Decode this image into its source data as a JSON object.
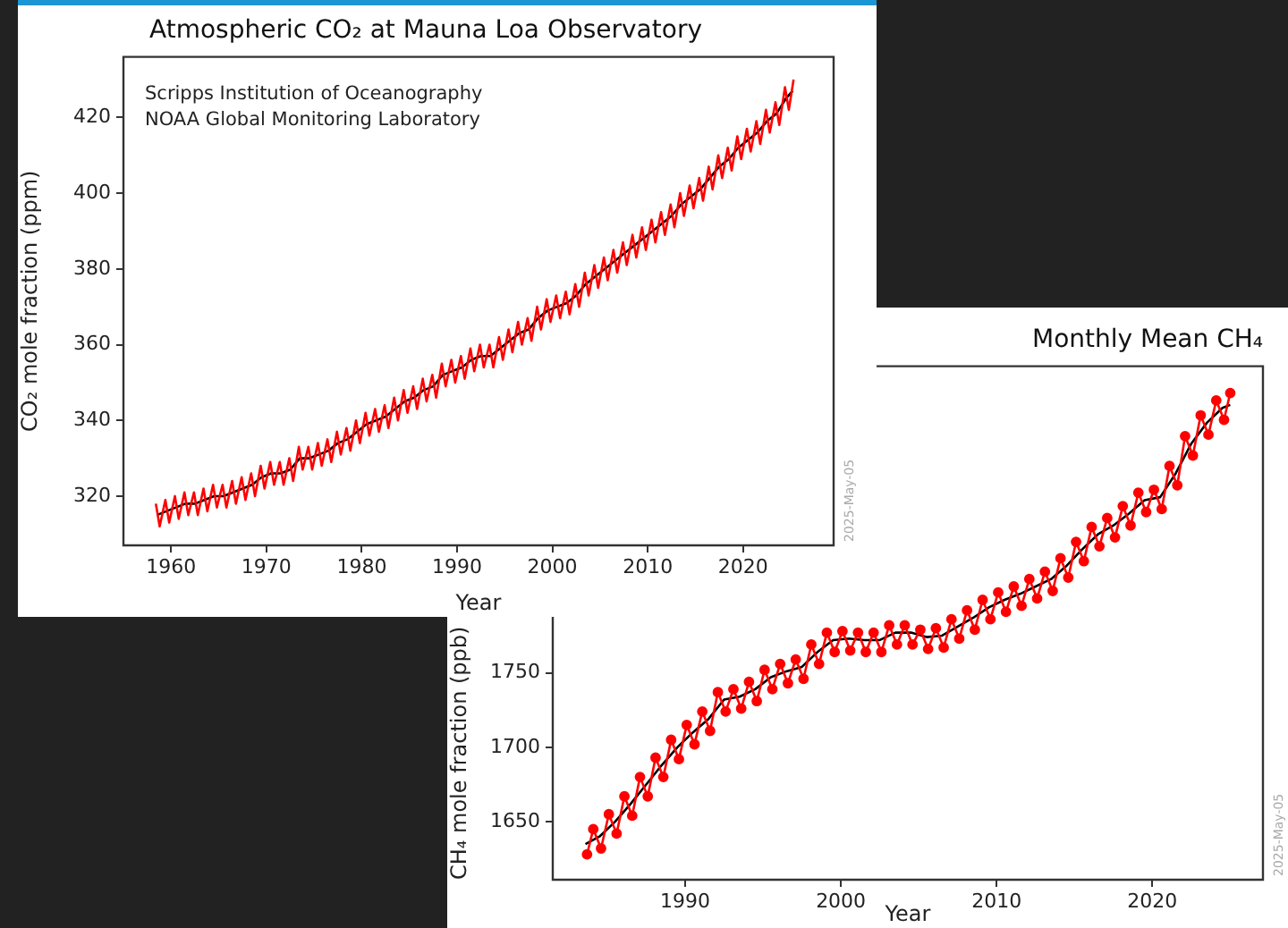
{
  "chart_data": [
    {
      "type": "line",
      "title": "Atmospheric CO₂ at Mauna Loa Observatory",
      "xlabel": "Year",
      "ylabel": "CO₂ mole fraction (ppm)",
      "annotations": [
        "Scripps Institution of Oceanography",
        "NOAA Global Monitoring Laboratory",
        "2025-May-05"
      ],
      "xlim": [
        1955,
        2029.5
      ],
      "xticks": [
        1960,
        1970,
        1980,
        1990,
        2000,
        2010,
        2020
      ],
      "ylim": [
        307,
        436
      ],
      "yticks": [
        320,
        340,
        360,
        380,
        400,
        420
      ],
      "grid": false,
      "legend": false,
      "marker": "none",
      "line_style": "solid",
      "series": [
        {
          "color": "#ff0000",
          "x": [
            1958.4,
            1958.8,
            1959.4,
            1959.8,
            1960.4,
            1960.8,
            1961.4,
            1961.8,
            1962.4,
            1962.8,
            1963.4,
            1963.8,
            1964.4,
            1964.8,
            1965.4,
            1965.8,
            1966.4,
            1966.8,
            1967.4,
            1967.8,
            1968.4,
            1968.8,
            1969.4,
            1969.8,
            1970.4,
            1970.8,
            1971.4,
            1971.8,
            1972.4,
            1972.8,
            1973.4,
            1973.8,
            1974.4,
            1974.8,
            1975.4,
            1975.8,
            1976.4,
            1976.8,
            1977.4,
            1977.8,
            1978.4,
            1978.8,
            1979.4,
            1979.8,
            1980.4,
            1980.8,
            1981.4,
            1981.8,
            1982.4,
            1982.8,
            1983.4,
            1983.8,
            1984.4,
            1984.8,
            1985.4,
            1985.8,
            1986.4,
            1986.8,
            1987.4,
            1987.8,
            1988.4,
            1988.8,
            1989.4,
            1989.8,
            1990.4,
            1990.8,
            1991.4,
            1991.8,
            1992.4,
            1992.8,
            1993.4,
            1993.8,
            1994.4,
            1994.8,
            1995.4,
            1995.8,
            1996.4,
            1996.8,
            1997.4,
            1997.8,
            1998.4,
            1998.8,
            1999.4,
            1999.8,
            2000.4,
            2000.8,
            2001.4,
            2001.8,
            2002.4,
            2002.8,
            2003.4,
            2003.8,
            2004.4,
            2004.8,
            2005.4,
            2005.8,
            2006.4,
            2006.8,
            2007.4,
            2007.8,
            2008.4,
            2008.8,
            2009.4,
            2009.8,
            2010.4,
            2010.8,
            2011.4,
            2011.8,
            2012.4,
            2012.8,
            2013.4,
            2013.8,
            2014.4,
            2014.8,
            2015.4,
            2015.8,
            2016.4,
            2016.8,
            2017.4,
            2017.8,
            2018.4,
            2018.8,
            2019.4,
            2019.8,
            2020.4,
            2020.8,
            2021.4,
            2021.8,
            2022.4,
            2022.8,
            2023.4,
            2023.8,
            2024.4,
            2024.8,
            2025.3
          ],
          "values": [
            318,
            312,
            319,
            313,
            320,
            314,
            321,
            315,
            321,
            315,
            322,
            316,
            323,
            317,
            323,
            317,
            324,
            318,
            325,
            319,
            326,
            320,
            328,
            322,
            329,
            323,
            329,
            323,
            330,
            324,
            333,
            327,
            333,
            327,
            334,
            328,
            335,
            329,
            337,
            331,
            338,
            332,
            340,
            334,
            342,
            336,
            343,
            337,
            344,
            338,
            346,
            340,
            348,
            342,
            349,
            343,
            351,
            345,
            352,
            346,
            355,
            349,
            356,
            350,
            357,
            351,
            359,
            353,
            360,
            354,
            360,
            354,
            362,
            356,
            364,
            358,
            366,
            360,
            367,
            361,
            370,
            364,
            372,
            366,
            373,
            367,
            374,
            368,
            376,
            370,
            379,
            373,
            381,
            375,
            383,
            377,
            385,
            379,
            387,
            381,
            389,
            383,
            391,
            385,
            393,
            387,
            395,
            389,
            397,
            391,
            400,
            394,
            402,
            396,
            404,
            398,
            407,
            401,
            410,
            404,
            412,
            406,
            415,
            409,
            417,
            411,
            419,
            413,
            422,
            416,
            424,
            418,
            428,
            422,
            430
          ]
        },
        {
          "color": "#000000",
          "x": [
            1958.5,
            1959.5,
            1960.5,
            1961.5,
            1962.5,
            1963.5,
            1964.5,
            1965.5,
            1966.5,
            1967.5,
            1968.5,
            1969.5,
            1970.5,
            1971.5,
            1972.5,
            1973.5,
            1974.5,
            1975.5,
            1976.5,
            1977.5,
            1978.5,
            1979.5,
            1980.5,
            1981.5,
            1982.5,
            1983.5,
            1984.5,
            1985.5,
            1986.5,
            1987.5,
            1988.5,
            1989.5,
            1990.5,
            1991.5,
            1992.5,
            1993.5,
            1994.5,
            1995.5,
            1996.5,
            1997.5,
            1998.5,
            1999.5,
            2000.5,
            2001.5,
            2002.5,
            2003.5,
            2004.5,
            2005.5,
            2006.5,
            2007.5,
            2008.5,
            2009.5,
            2010.5,
            2011.5,
            2012.5,
            2013.5,
            2014.5,
            2015.5,
            2016.5,
            2017.5,
            2018.5,
            2019.5,
            2020.5,
            2021.5,
            2022.5,
            2023.5,
            2024.5,
            2025.2
          ],
          "values": [
            315,
            316,
            317,
            318,
            318,
            319,
            320,
            320,
            321,
            322,
            323,
            325,
            326,
            326,
            327,
            330,
            330,
            331,
            332,
            334,
            335,
            337,
            339,
            340,
            341,
            343,
            345,
            346,
            348,
            349,
            352,
            353,
            354,
            356,
            357,
            357,
            359,
            361,
            363,
            364,
            367,
            369,
            370,
            371,
            373,
            376,
            378,
            380,
            382,
            384,
            386,
            388,
            390,
            392,
            394,
            397,
            399,
            401,
            404,
            407,
            409,
            412,
            414,
            416,
            419,
            421,
            425,
            427
          ]
        }
      ]
    },
    {
      "type": "line",
      "title": "Monthly Mean CH₄",
      "xlabel": "Year",
      "ylabel": "CH₄ mole fraction (ppb)",
      "annotations": [
        "2025-May-05"
      ],
      "xlim": [
        1981.5,
        2027.1
      ],
      "xticks": [
        1990,
        2000,
        2010,
        2020
      ],
      "ylim": [
        1611,
        1956
      ],
      "yticks": [
        1650,
        1700,
        1750
      ],
      "grid": false,
      "legend": false,
      "line_style": "solid",
      "series": [
        {
          "color": "#ff0000",
          "marker": "circle",
          "x": [
            1983.7,
            1984.1,
            1984.6,
            1985.1,
            1985.6,
            1986.1,
            1986.6,
            1987.1,
            1987.6,
            1988.1,
            1988.6,
            1989.1,
            1989.6,
            1990.1,
            1990.6,
            1991.1,
            1991.6,
            1992.1,
            1992.6,
            1993.1,
            1993.6,
            1994.1,
            1994.6,
            1995.1,
            1995.6,
            1996.1,
            1996.6,
            1997.1,
            1997.6,
            1998.1,
            1998.6,
            1999.1,
            1999.6,
            2000.1,
            2000.6,
            2001.1,
            2001.6,
            2002.1,
            2002.6,
            2003.1,
            2003.6,
            2004.1,
            2004.6,
            2005.1,
            2005.6,
            2006.1,
            2006.6,
            2007.1,
            2007.6,
            2008.1,
            2008.6,
            2009.1,
            2009.6,
            2010.1,
            2010.6,
            2011.1,
            2011.6,
            2012.1,
            2012.6,
            2013.1,
            2013.6,
            2014.1,
            2014.6,
            2015.1,
            2015.6,
            2016.1,
            2016.6,
            2017.1,
            2017.6,
            2018.1,
            2018.6,
            2019.1,
            2019.6,
            2020.1,
            2020.6,
            2021.1,
            2021.6,
            2022.1,
            2022.6,
            2023.1,
            2023.6,
            2024.1,
            2024.6,
            2025.0
          ],
          "values": [
            1628,
            1645,
            1632,
            1655,
            1642,
            1667,
            1654,
            1680,
            1667,
            1693,
            1680,
            1705,
            1692,
            1715,
            1702,
            1724,
            1711,
            1737,
            1724,
            1739,
            1726,
            1744,
            1731,
            1752,
            1739,
            1756,
            1743,
            1759,
            1746,
            1769,
            1756,
            1777,
            1764,
            1778,
            1765,
            1777,
            1764,
            1777,
            1764,
            1782,
            1769,
            1782,
            1769,
            1779,
            1766,
            1780,
            1767,
            1786,
            1773,
            1792,
            1779,
            1799,
            1786,
            1804,
            1791,
            1808,
            1795,
            1813,
            1800,
            1818,
            1805,
            1827,
            1814,
            1838,
            1825,
            1848,
            1835,
            1854,
            1841,
            1862,
            1849,
            1871,
            1858,
            1873,
            1860,
            1889,
            1876,
            1909,
            1896,
            1923,
            1910,
            1933,
            1920,
            1938
          ]
        },
        {
          "color": "#000000",
          "x": [
            1983.6,
            1984.5,
            1985.5,
            1986.5,
            1987.5,
            1988.5,
            1989.5,
            1990.5,
            1991.5,
            1992.5,
            1993.5,
            1994.5,
            1995.5,
            1996.5,
            1997.5,
            1998.5,
            1999.5,
            2000.5,
            2001.5,
            2002.5,
            2003.5,
            2004.5,
            2005.5,
            2006.5,
            2007.5,
            2008.5,
            2009.5,
            2010.5,
            2011.5,
            2012.5,
            2013.5,
            2014.5,
            2015.5,
            2016.5,
            2017.5,
            2018.5,
            2019.5,
            2020.5,
            2021.5,
            2022.5,
            2023.5,
            2024.5,
            2025.0
          ],
          "values": [
            1635,
            1640,
            1650,
            1662,
            1675,
            1688,
            1700,
            1710,
            1719,
            1732,
            1734,
            1739,
            1747,
            1751,
            1754,
            1764,
            1772,
            1773,
            1772,
            1772,
            1777,
            1777,
            1774,
            1775,
            1781,
            1787,
            1794,
            1799,
            1803,
            1808,
            1813,
            1822,
            1833,
            1843,
            1849,
            1857,
            1866,
            1868,
            1884,
            1904,
            1918,
            1928,
            1930
          ]
        }
      ]
    }
  ]
}
